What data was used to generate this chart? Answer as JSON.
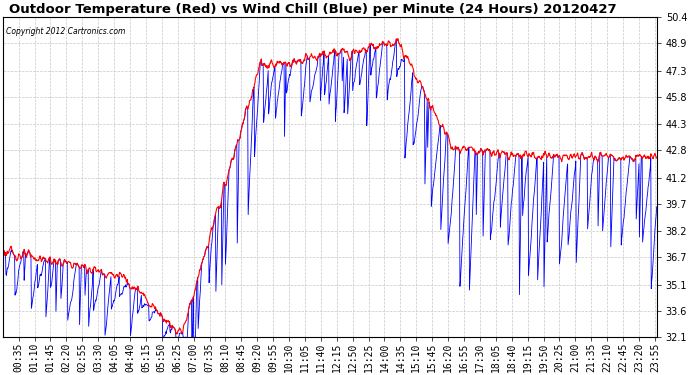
{
  "title": "Outdoor Temperature (Red) vs Wind Chill (Blue) per Minute (24 Hours) 20120427",
  "copyright_text": "Copyright 2012 Cartronics.com",
  "ylim": [
    32.1,
    50.4
  ],
  "yticks": [
    32.1,
    33.6,
    35.1,
    36.7,
    38.2,
    39.7,
    41.2,
    42.8,
    44.3,
    45.8,
    47.3,
    48.9,
    50.4
  ],
  "temp_color": "red",
  "wind_color": "blue",
  "bg_color": "#ffffff",
  "grid_color": "#c8c8c8",
  "title_fontsize": 9.5,
  "tick_fontsize": 7,
  "total_minutes": 1440,
  "x_tick_labels": [
    "00:35",
    "01:10",
    "01:45",
    "02:20",
    "02:55",
    "03:30",
    "04:05",
    "04:40",
    "05:15",
    "05:50",
    "06:25",
    "07:00",
    "07:35",
    "08:10",
    "08:45",
    "09:20",
    "09:55",
    "10:30",
    "11:05",
    "11:40",
    "12:15",
    "12:50",
    "13:25",
    "14:00",
    "14:35",
    "15:10",
    "15:45",
    "16:20",
    "16:55",
    "17:30",
    "18:05",
    "18:40",
    "19:15",
    "19:50",
    "20:25",
    "21:00",
    "21:35",
    "22:10",
    "22:45",
    "23:20",
    "23:55"
  ]
}
